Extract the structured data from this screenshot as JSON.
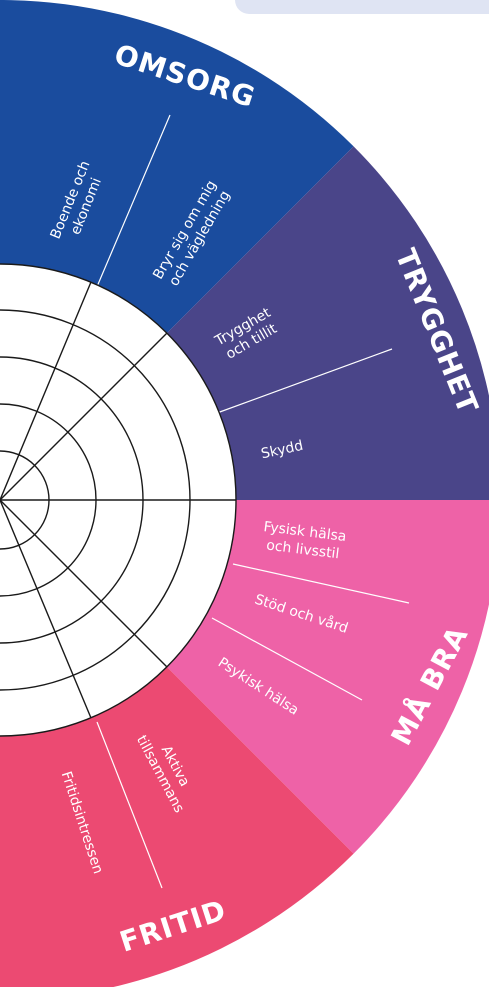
{
  "colors": {
    "omsorg": "#1a4c9e",
    "trygghet": "#4a4589",
    "ma_bra": "#ee62a7",
    "fritid": "#ec4a72",
    "top_tab": "#dfe4f3",
    "rings": "#1a1a1a"
  },
  "categories": [
    {
      "key": "omsorg",
      "title": "OMSORG",
      "subs": [
        {
          "lines": [
            "Boende och",
            "ekonomi"
          ]
        },
        {
          "lines": [
            "Bryr sig om mig",
            "och vägledning"
          ]
        }
      ]
    },
    {
      "key": "trygghet",
      "title": "TRYGGHET",
      "subs": [
        {
          "lines": [
            "Trygghet",
            "och tillit"
          ]
        },
        {
          "lines": [
            "Skydd"
          ]
        }
      ]
    },
    {
      "key": "ma_bra",
      "title": "MÅ BRA",
      "subs": [
        {
          "lines": [
            "Fysisk hälsa",
            "och livsstil"
          ]
        },
        {
          "lines": [
            "Stöd och vård"
          ]
        },
        {
          "lines": [
            "Psykisk hälsa"
          ]
        }
      ]
    },
    {
      "key": "fritid",
      "title": "FRITID",
      "subs": [
        {
          "lines": [
            "Aktiva",
            "tillsammans"
          ]
        },
        {
          "lines": [
            "Fritidsintressen"
          ]
        }
      ]
    }
  ]
}
